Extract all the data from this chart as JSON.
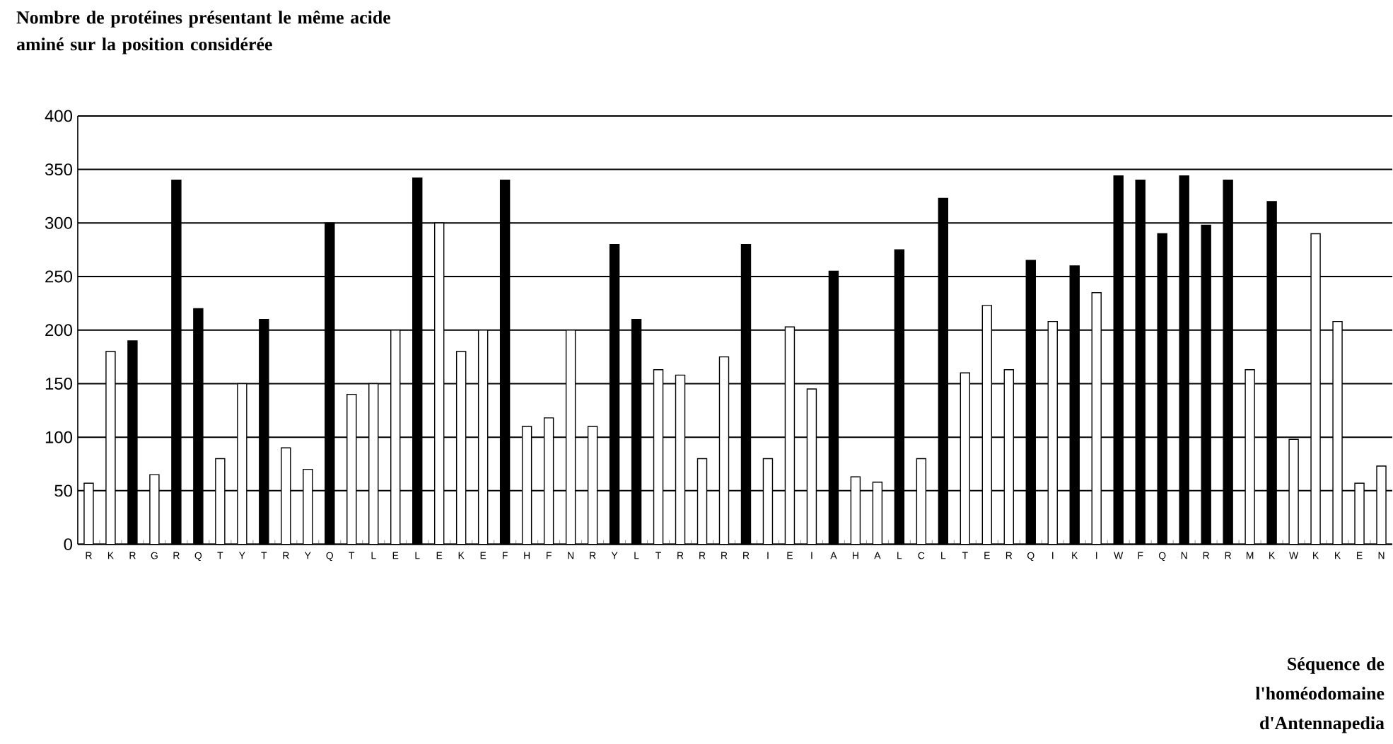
{
  "chart_data": {
    "type": "bar",
    "title": "Nombre de protéines présentant le même acide aminé sur la position considérée",
    "annotations": [
      "Séquence de l'homéodomaine d'Antennapedia"
    ],
    "categories": [
      "R",
      "K",
      "R",
      "G",
      "R",
      "Q",
      "T",
      "Y",
      "T",
      "R",
      "Y",
      "Q",
      "T",
      "L",
      "E",
      "L",
      "E",
      "K",
      "E",
      "F",
      "H",
      "F",
      "N",
      "R",
      "Y",
      "L",
      "T",
      "R",
      "R",
      "R",
      "R",
      "I",
      "E",
      "I",
      "A",
      "H",
      "A",
      "L",
      "C",
      "L",
      "T",
      "E",
      "R",
      "Q",
      "I",
      "K",
      "I",
      "W",
      "F",
      "Q",
      "N",
      "R",
      "R",
      "M",
      "K",
      "W",
      "K",
      "K",
      "E",
      "N"
    ],
    "values": [
      57,
      180,
      190,
      65,
      340,
      220,
      80,
      150,
      210,
      90,
      70,
      300,
      140,
      150,
      200,
      342,
      300,
      180,
      200,
      340,
      110,
      118,
      200,
      110,
      280,
      210,
      163,
      158,
      80,
      175,
      280,
      80,
      203,
      145,
      255,
      63,
      58,
      275,
      80,
      323,
      160,
      223,
      163,
      265,
      208,
      260,
      235,
      344,
      340,
      290,
      344,
      298,
      340,
      163,
      320,
      98,
      290,
      208,
      57,
      73
    ],
    "colors": [
      "#ffffff",
      "#ffffff",
      "#000000",
      "#ffffff",
      "#000000",
      "#000000",
      "#ffffff",
      "#ffffff",
      "#000000",
      "#ffffff",
      "#ffffff",
      "#000000",
      "#ffffff",
      "#ffffff",
      "#ffffff",
      "#000000",
      "#ffffff",
      "#ffffff",
      "#ffffff",
      "#000000",
      "#ffffff",
      "#ffffff",
      "#ffffff",
      "#ffffff",
      "#000000",
      "#000000",
      "#ffffff",
      "#ffffff",
      "#ffffff",
      "#ffffff",
      "#000000",
      "#ffffff",
      "#ffffff",
      "#ffffff",
      "#000000",
      "#ffffff",
      "#ffffff",
      "#000000",
      "#ffffff",
      "#000000",
      "#ffffff",
      "#ffffff",
      "#ffffff",
      "#000000",
      "#ffffff",
      "#000000",
      "#ffffff",
      "#000000",
      "#000000",
      "#000000",
      "#000000",
      "#000000",
      "#000000",
      "#ffffff",
      "#000000",
      "#ffffff",
      "#ffffff",
      "#ffffff",
      "#ffffff",
      "#ffffff"
    ],
    "ylim": [
      0,
      400
    ],
    "yticks": [
      0,
      50,
      100,
      150,
      200,
      250,
      300,
      350,
      400
    ],
    "grid": "y"
  }
}
